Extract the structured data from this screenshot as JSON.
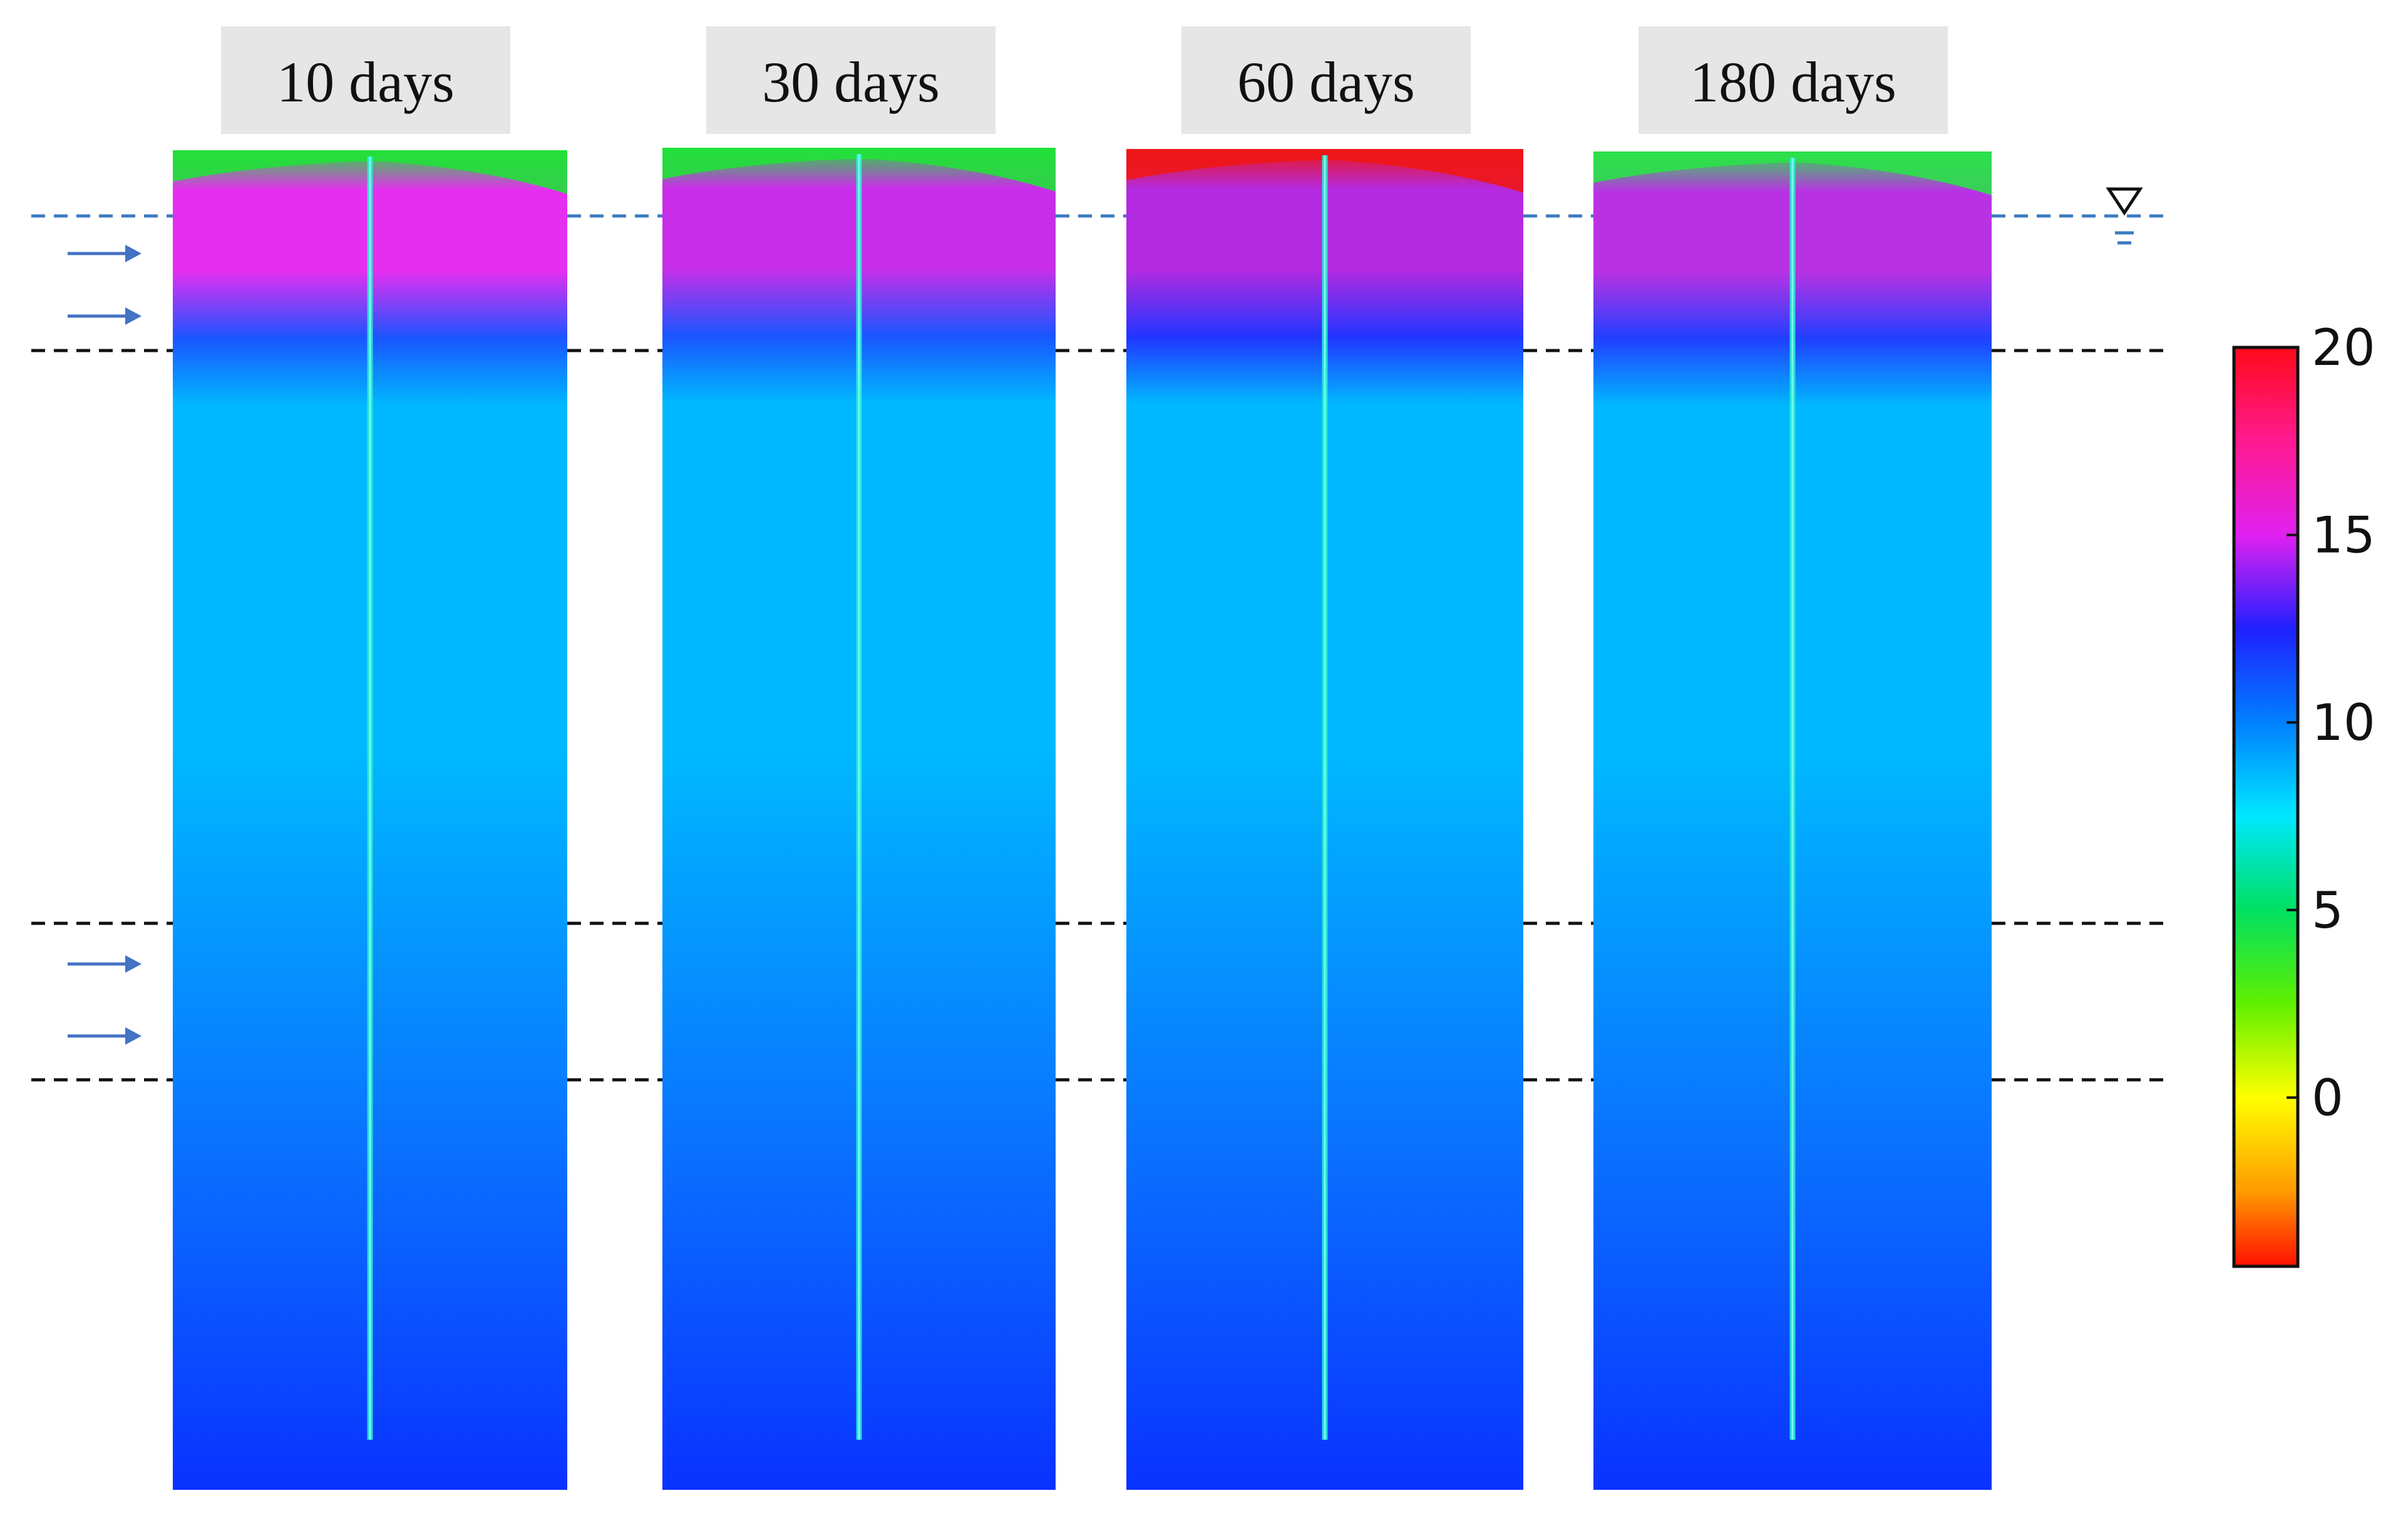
{
  "panels": [
    {
      "label": "10 days",
      "top_color": "#22e03a",
      "upper_color": "#e62ef0",
      "front_color": "#1a55ff"
    },
    {
      "label": "30 days",
      "top_color": "#22e03a",
      "upper_color": "#c82ee8",
      "front_color": "#1a55ff"
    },
    {
      "label": "60 days",
      "top_color": "#ee1616",
      "upper_color": "#b32ae0",
      "front_color": "#2235ff"
    },
    {
      "label": "180 days",
      "top_color": "#2ce04a",
      "upper_color": "#b832e4",
      "front_color": "#2040ff"
    }
  ],
  "colorbar": {
    "ticks": [
      "20",
      "15",
      "10",
      "5",
      "0"
    ],
    "stops": [
      {
        "value": 20,
        "color": "#ff0a1a"
      },
      {
        "value": 17.5,
        "color": "#ff1a90"
      },
      {
        "value": 15,
        "color": "#e021f0"
      },
      {
        "value": 12.5,
        "color": "#2020ff"
      },
      {
        "value": 10,
        "color": "#0080ff"
      },
      {
        "value": 7.5,
        "color": "#00e8ff"
      },
      {
        "value": 5,
        "color": "#00e060"
      },
      {
        "value": 2.5,
        "color": "#60f000"
      },
      {
        "value": 0,
        "color": "#ffff00"
      },
      {
        "value": -2.5,
        "color": "#ff9a00"
      },
      {
        "value": -4.5,
        "color": "#ff1000"
      }
    ],
    "range": [
      -4.5,
      20
    ]
  },
  "colors": {
    "water_line": "#3a7bbf",
    "boundary_line": "#111111",
    "arrow": "#4472c4",
    "label_bg": "#e6e6e6",
    "crack": "#2af0d2",
    "base_body": "#00b8ff",
    "deep_body": "#0a32ff"
  },
  "icons": {
    "water_table": "water-table-triangle-icon",
    "inflow": "arrow-right-icon"
  }
}
